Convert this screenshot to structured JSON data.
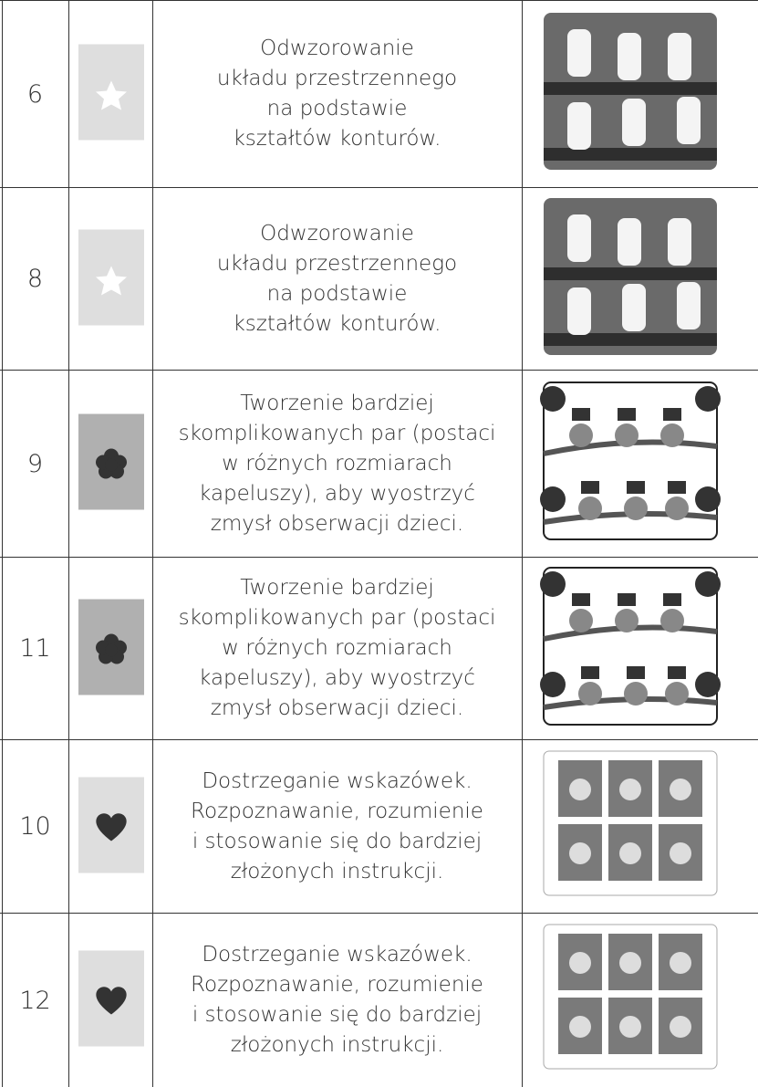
{
  "rows": [
    {
      "number": "6",
      "text": [
        "Odwzorowanie",
        "układu przestrzennego",
        "na podstawie",
        "kształtów konturów."
      ]
    },
    {
      "number": "8",
      "text": [
        "Odwzorowanie",
        "układu przestrzennego",
        "na podstawie",
        "kształtów konturów."
      ]
    },
    {
      "number": "9",
      "text": [
        "Tworzenie bardziej",
        "skomplikowanych par (postaci",
        "w różnych rozmiarach",
        "kapeluszy), aby wyostrzyć",
        "zmysł obserwacji dzieci."
      ]
    },
    {
      "number": "11",
      "text": [
        "Tworzenie bardziej",
        "skomplikowanych par (postaci",
        "w różnych rozmiarach",
        "kapeluszy), aby wyostrzyć",
        "zmysł obserwacji dzieci."
      ]
    },
    {
      "number": "10",
      "text": [
        "Dostrzeganie wskazówek.",
        "Rozpoznawanie, rozumienie",
        "i stosowanie się do bardziej",
        "złożonych instrukcji."
      ]
    },
    {
      "number": "12",
      "text": [
        "Dostrzeganie wskazówek.",
        "Rozpoznawanie, rozumienie",
        "i stosowanie się do bardziej",
        "złożonych instrukcji."
      ]
    }
  ]
}
